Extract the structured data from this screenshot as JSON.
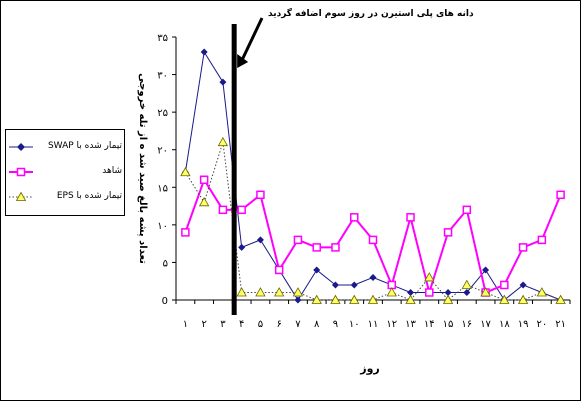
{
  "chart_data": {
    "type": "line",
    "annotation": "دانه های پلی استیرن در روز سوم اضافه گردید",
    "xlabel": "روز",
    "ylabel": "تعداد پشه بالغ صید شد ه از تله خروجی",
    "categories": [
      "۱",
      "۲",
      "۳",
      "۴",
      "۵",
      "۶",
      "۷",
      "۸",
      "۹",
      "۱۰",
      "۱۱",
      "۱۲",
      "۱۳",
      "۱۴",
      "۱۵",
      "۱۶",
      "۱۷",
      "۱۸",
      "۱۹",
      "۲۰",
      "۲۱"
    ],
    "y_tick_labels": [
      "0",
      "۵",
      "۱۰",
      "۱۵",
      "۲۰",
      "۲۵",
      "۳۰",
      "۳۵"
    ],
    "ylim": [
      0,
      35
    ],
    "y_ticks": [
      0,
      5,
      10,
      15,
      20,
      25,
      30,
      35
    ],
    "grid": "none",
    "legend_position": "left",
    "event_x": 3.6,
    "series": [
      {
        "name": "تیمار شده با SWAP",
        "color": "#1a1a8c",
        "style": "solid",
        "marker": "diamond",
        "values": [
          17,
          33,
          29,
          7,
          8,
          4,
          0,
          4,
          2,
          2,
          3,
          2,
          1,
          1,
          1,
          1,
          4,
          0,
          2,
          1,
          0
        ]
      },
      {
        "name": "شاهد",
        "color": "#ff00ff",
        "style": "solid",
        "marker": "square",
        "values": [
          9,
          16,
          12,
          12,
          14,
          4,
          8,
          7,
          7,
          11,
          8,
          2,
          11,
          1,
          9,
          12,
          1,
          2,
          7,
          8,
          14
        ]
      },
      {
        "name": "تیمار شده با EPS",
        "color": "#444444",
        "style": "dotted",
        "marker": "triangle",
        "values": [
          17,
          13,
          21,
          1,
          1,
          1,
          1,
          0,
          0,
          0,
          0,
          1,
          0,
          3,
          0,
          2,
          1,
          0,
          0,
          1,
          0
        ]
      }
    ]
  }
}
